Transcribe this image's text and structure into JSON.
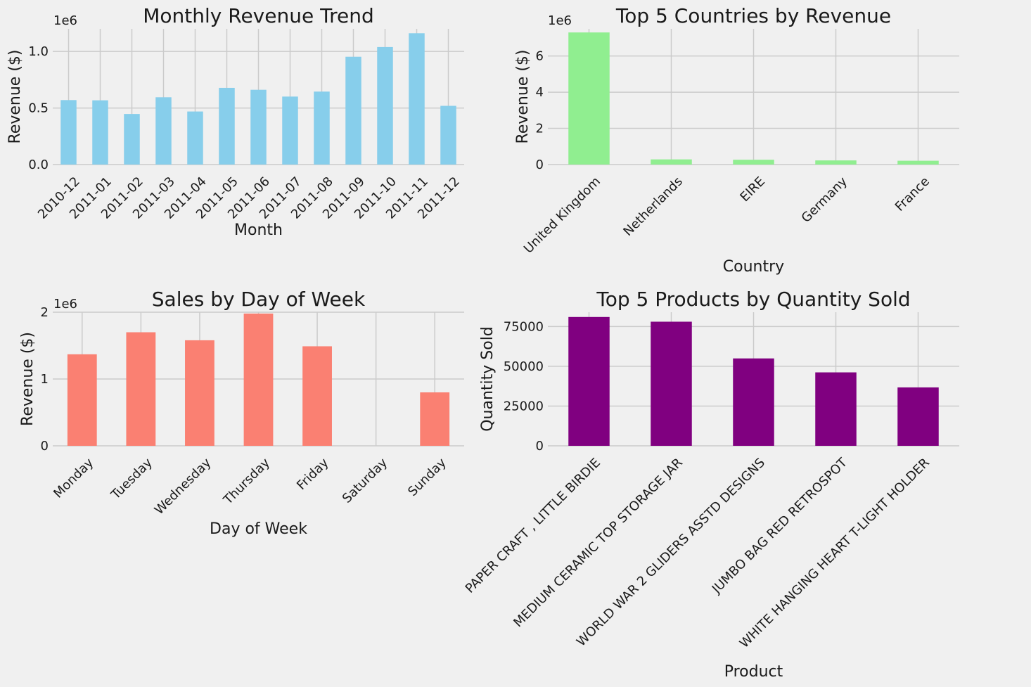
{
  "chart_data": [
    {
      "type": "bar",
      "title": "Monthly Revenue Trend",
      "xlabel": "Month",
      "ylabel": "Revenue ($)",
      "offset_text": "1e6",
      "color": "#87ceeb",
      "categories": [
        "2010-12",
        "2011-01",
        "2011-02",
        "2011-03",
        "2011-04",
        "2011-05",
        "2011-06",
        "2011-07",
        "2011-08",
        "2011-09",
        "2011-10",
        "2011-11",
        "2011-12"
      ],
      "values": [
        570000,
        568000,
        447000,
        595000,
        469000,
        678000,
        661000,
        601000,
        645000,
        953000,
        1039000,
        1161000,
        519000
      ],
      "ylim": [
        0,
        1200000
      ],
      "yticks": [
        0,
        500000,
        1000000
      ],
      "ytick_labels": [
        "0.0",
        "0.5",
        "1.0"
      ],
      "grid": true,
      "xtick_rotation": 45
    },
    {
      "type": "bar",
      "title": "Top 5 Countries by Revenue",
      "xlabel": "Country",
      "ylabel": "Revenue ($)",
      "offset_text": "1e6",
      "color": "#90ee90",
      "categories": [
        "United Kingdom",
        "Netherlands",
        "EIRE",
        "Germany",
        "France"
      ],
      "values": [
        7300000,
        285000,
        265000,
        228000,
        210000
      ],
      "ylim": [
        0,
        7500000
      ],
      "yticks": [
        0,
        2000000,
        4000000,
        6000000
      ],
      "ytick_labels": [
        "0",
        "2",
        "4",
        "6"
      ],
      "grid": true,
      "xtick_rotation": 45
    },
    {
      "type": "bar",
      "title": "Sales by Day of Week",
      "xlabel": "Day of Week",
      "ylabel": "Revenue ($)",
      "offset_text": "1e6",
      "color": "#fa8072",
      "categories": [
        "Monday",
        "Tuesday",
        "Wednesday",
        "Thursday",
        "Friday",
        "Saturday",
        "Sunday"
      ],
      "values": [
        1370000,
        1700000,
        1580000,
        1980000,
        1490000,
        0,
        800000
      ],
      "ylim": [
        0,
        2000000
      ],
      "yticks": [
        0,
        1000000,
        2000000
      ],
      "ytick_labels": [
        "0",
        "1",
        "2"
      ],
      "grid": true,
      "xtick_rotation": 45
    },
    {
      "type": "bar",
      "title": "Top 5 Products by Quantity Sold",
      "xlabel": "Product",
      "ylabel": "Quantity Sold",
      "offset_text": "",
      "color": "#800080",
      "categories": [
        "PAPER CRAFT , LITTLE BIRDIE",
        "MEDIUM CERAMIC TOP STORAGE JAR",
        "WORLD WAR 2 GLIDERS ASSTD DESIGNS",
        "JUMBO BAG RED RETROSPOT",
        "WHITE HANGING HEART T-LIGHT HOLDER"
      ],
      "values": [
        80995,
        78033,
        54951,
        46181,
        36725
      ],
      "ylim": [
        0,
        84000
      ],
      "yticks": [
        0,
        25000,
        50000,
        75000
      ],
      "ytick_labels": [
        "0",
        "25000",
        "50000",
        "75000"
      ],
      "grid": true,
      "xtick_rotation": 45
    }
  ]
}
